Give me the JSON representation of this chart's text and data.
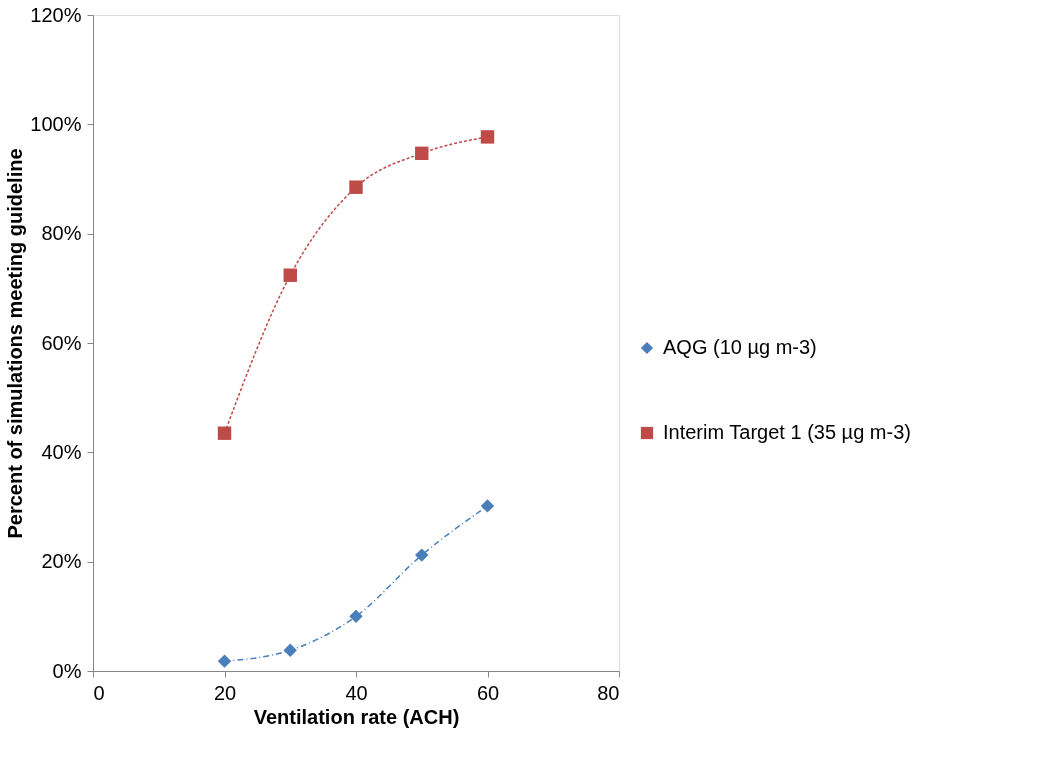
{
  "chart_data": {
    "type": "line",
    "xlabel": "Ventilation rate (ACH)",
    "ylabel": "Percent of simulations meeting guideline",
    "x": [
      20,
      30,
      40,
      50,
      60
    ],
    "series": [
      {
        "name": "AQG (10 µg m-3)",
        "color": "#4a7ebb",
        "values": [
          1.8,
          3.8,
          10,
          21.2,
          30.2
        ],
        "marker": "diamond",
        "line_style": "dashed"
      },
      {
        "name": "Interim Target 1 (35 µg m-3)",
        "color": "#be4b48",
        "values": [
          43.5,
          72.4,
          88.5,
          94.7,
          97.7
        ],
        "marker": "square",
        "line_style": "dotted"
      }
    ],
    "xlim": [
      0,
      80
    ],
    "xticks": [
      0,
      20,
      40,
      60,
      80
    ],
    "ylim": [
      0,
      120
    ],
    "yticks": [
      {
        "value": 0,
        "label": "0%"
      },
      {
        "value": 20,
        "label": "20%"
      },
      {
        "value": 40,
        "label": "40%"
      },
      {
        "value": 60,
        "label": "60%"
      },
      {
        "value": 80,
        "label": "80%"
      },
      {
        "value": 100,
        "label": "100%"
      },
      {
        "value": 120,
        "label": "120%"
      }
    ],
    "grid": false,
    "legend": "right"
  }
}
